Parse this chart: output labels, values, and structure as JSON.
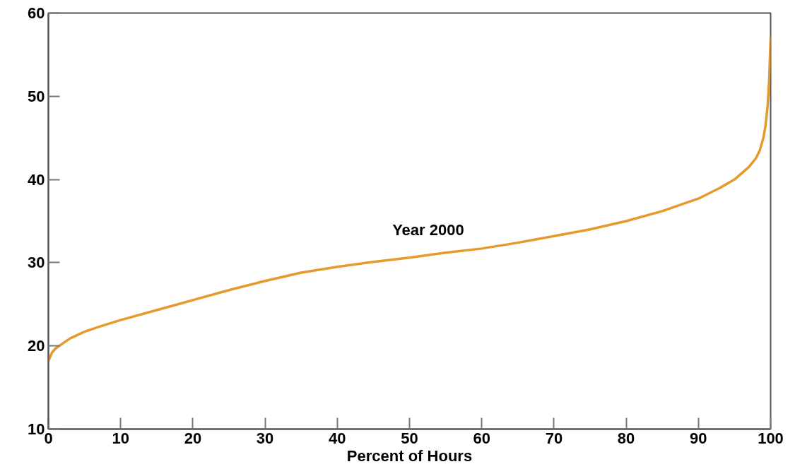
{
  "chart_data": {
    "type": "line",
    "xlabel": "Percent of Hours",
    "xlim": [
      0,
      100
    ],
    "ylim": [
      10,
      60
    ],
    "xticks": [
      0,
      10,
      20,
      30,
      40,
      50,
      60,
      70,
      80,
      90,
      100
    ],
    "yticks": [
      10,
      20,
      30,
      40,
      50,
      60
    ],
    "grid": false,
    "marker": "none",
    "line_style": "solid",
    "series": [
      {
        "name": "Year 2000",
        "color": "#e59a2c",
        "x": [
          0,
          0.5,
          1,
          2,
          3,
          5,
          7,
          10,
          15,
          20,
          25,
          30,
          35,
          40,
          45,
          50,
          55,
          60,
          65,
          70,
          75,
          80,
          85,
          90,
          93,
          95,
          97,
          98,
          98.5,
          99,
          99.3,
          99.6,
          99.8,
          100
        ],
        "values": [
          18.2,
          19.2,
          19.7,
          20.3,
          20.9,
          21.7,
          22.3,
          23.1,
          24.3,
          25.5,
          26.7,
          27.8,
          28.8,
          29.5,
          30.1,
          30.6,
          31.2,
          31.7,
          32.4,
          33.2,
          34.0,
          35.0,
          36.2,
          37.7,
          39.0,
          40.0,
          41.5,
          42.6,
          43.5,
          45.0,
          46.5,
          49.0,
          52.0,
          57.2
        ]
      }
    ]
  }
}
